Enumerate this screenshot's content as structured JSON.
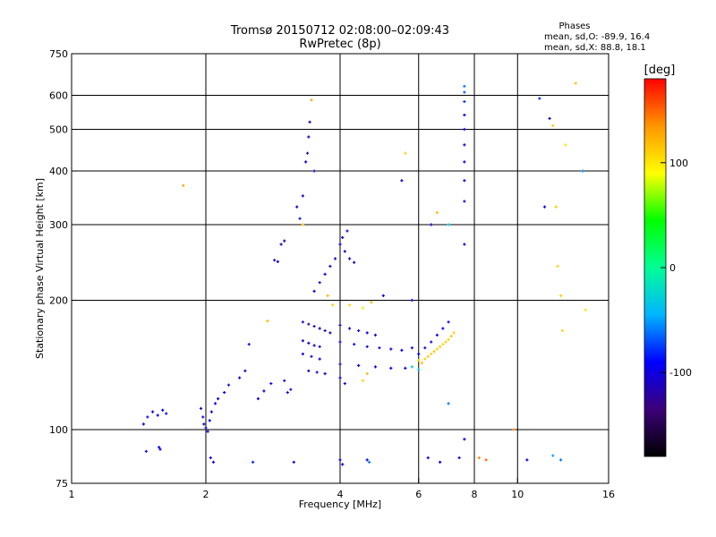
{
  "chart_data": {
    "type": "scatter",
    "title": "Tromsø 20150712 02:08:00–02:09:43",
    "subtitle": "RwPretec (8p)",
    "xlabel": "Frequency [MHz]",
    "ylabel": "Stationary phase Virtual Height [km]",
    "x_scale": "log",
    "y_scale": "log",
    "xlim": [
      1,
      16
    ],
    "ylim": [
      75,
      750
    ],
    "x_ticks": [
      1,
      2,
      4,
      6,
      8,
      10,
      16
    ],
    "y_ticks": [
      75,
      100,
      200,
      300,
      400,
      500,
      600,
      750
    ],
    "grid": true,
    "stats": {
      "heading": "Phases",
      "o_line": "mean, sd,O: -89.9, 16.4",
      "x_line": "mean, sd,X:  88.8, 18.1"
    },
    "colorbar": {
      "label": "[deg]",
      "min": -180,
      "max": 180,
      "ticks": [
        100,
        0,
        -100
      ],
      "colors": [
        "#000000",
        "#3c0078",
        "#0000ff",
        "#00b4ff",
        "#00ff96",
        "#00ff00",
        "#ffff00",
        "#ff9600",
        "#ff0000"
      ]
    },
    "series": [
      {
        "values": [
          {
            "x": 1.45,
            "y": 103,
            "c": -95
          },
          {
            "x": 1.48,
            "y": 107,
            "c": -90
          },
          {
            "x": 1.52,
            "y": 110,
            "c": -100
          },
          {
            "x": 1.56,
            "y": 108,
            "c": -95
          },
          {
            "x": 1.6,
            "y": 111,
            "c": -90
          },
          {
            "x": 1.63,
            "y": 109,
            "c": -100
          },
          {
            "x": 1.47,
            "y": 89,
            "c": -95
          },
          {
            "x": 1.57,
            "y": 91,
            "c": -90
          },
          {
            "x": 1.58,
            "y": 90,
            "c": -95
          },
          {
            "x": 1.78,
            "y": 370,
            "c": 130
          },
          {
            "x": 1.95,
            "y": 112,
            "c": -110
          },
          {
            "x": 1.97,
            "y": 107,
            "c": -100
          },
          {
            "x": 1.98,
            "y": 103,
            "c": -105
          },
          {
            "x": 2.0,
            "y": 101,
            "c": -95
          },
          {
            "x": 2.02,
            "y": 99,
            "c": -100
          },
          {
            "x": 2.04,
            "y": 105,
            "c": -90
          },
          {
            "x": 2.06,
            "y": 110,
            "c": -95
          },
          {
            "x": 2.1,
            "y": 115,
            "c": -90
          },
          {
            "x": 2.13,
            "y": 118,
            "c": -95
          },
          {
            "x": 2.05,
            "y": 86,
            "c": -95
          },
          {
            "x": 2.08,
            "y": 84,
            "c": -100
          },
          {
            "x": 2.2,
            "y": 122,
            "c": -90
          },
          {
            "x": 2.25,
            "y": 127,
            "c": -95
          },
          {
            "x": 2.38,
            "y": 132,
            "c": -100
          },
          {
            "x": 2.45,
            "y": 137,
            "c": -110
          },
          {
            "x": 2.5,
            "y": 158,
            "c": -100
          },
          {
            "x": 2.55,
            "y": 84,
            "c": -80
          },
          {
            "x": 2.62,
            "y": 118,
            "c": -90
          },
          {
            "x": 2.7,
            "y": 123,
            "c": -100
          },
          {
            "x": 2.75,
            "y": 179,
            "c": 120
          },
          {
            "x": 2.8,
            "y": 128,
            "c": -95
          },
          {
            "x": 2.85,
            "y": 248,
            "c": -110
          },
          {
            "x": 2.9,
            "y": 246,
            "c": -100
          },
          {
            "x": 2.95,
            "y": 270,
            "c": -120
          },
          {
            "x": 3.0,
            "y": 275,
            "c": -110
          },
          {
            "x": 3.0,
            "y": 130,
            "c": -105
          },
          {
            "x": 3.05,
            "y": 122,
            "c": -95
          },
          {
            "x": 3.1,
            "y": 124,
            "c": -100
          },
          {
            "x": 3.15,
            "y": 84,
            "c": -110
          },
          {
            "x": 3.2,
            "y": 330,
            "c": -105
          },
          {
            "x": 3.25,
            "y": 310,
            "c": -100
          },
          {
            "x": 3.3,
            "y": 350,
            "c": -110
          },
          {
            "x": 3.3,
            "y": 300,
            "c": 120
          },
          {
            "x": 3.35,
            "y": 420,
            "c": -100
          },
          {
            "x": 3.38,
            "y": 440,
            "c": -110
          },
          {
            "x": 3.4,
            "y": 480,
            "c": -100
          },
          {
            "x": 3.42,
            "y": 520,
            "c": -120
          },
          {
            "x": 3.45,
            "y": 585,
            "c": 130
          },
          {
            "x": 3.5,
            "y": 400,
            "c": -110
          },
          {
            "x": 3.3,
            "y": 178,
            "c": -115
          },
          {
            "x": 3.4,
            "y": 176,
            "c": -120
          },
          {
            "x": 3.5,
            "y": 174,
            "c": -115
          },
          {
            "x": 3.6,
            "y": 172,
            "c": -110
          },
          {
            "x": 3.7,
            "y": 170,
            "c": -120
          },
          {
            "x": 3.8,
            "y": 168,
            "c": -115
          },
          {
            "x": 3.3,
            "y": 161,
            "c": -105
          },
          {
            "x": 3.4,
            "y": 159,
            "c": -100
          },
          {
            "x": 3.5,
            "y": 157,
            "c": -110
          },
          {
            "x": 3.6,
            "y": 156,
            "c": -105
          },
          {
            "x": 3.3,
            "y": 150,
            "c": -100
          },
          {
            "x": 3.45,
            "y": 148,
            "c": -105
          },
          {
            "x": 3.6,
            "y": 146,
            "c": -100
          },
          {
            "x": 3.4,
            "y": 137,
            "c": -110
          },
          {
            "x": 3.55,
            "y": 136,
            "c": -105
          },
          {
            "x": 3.7,
            "y": 135,
            "c": -110
          },
          {
            "x": 3.5,
            "y": 210,
            "c": -110
          },
          {
            "x": 3.6,
            "y": 220,
            "c": -105
          },
          {
            "x": 3.7,
            "y": 230,
            "c": -100
          },
          {
            "x": 3.75,
            "y": 205,
            "c": 120
          },
          {
            "x": 3.8,
            "y": 240,
            "c": -110
          },
          {
            "x": 3.85,
            "y": 195,
            "c": 110
          },
          {
            "x": 3.9,
            "y": 250,
            "c": -105
          },
          {
            "x": 4.0,
            "y": 270,
            "c": -100
          },
          {
            "x": 4.05,
            "y": 280,
            "c": -110
          },
          {
            "x": 4.1,
            "y": 260,
            "c": -105
          },
          {
            "x": 4.15,
            "y": 290,
            "c": -100
          },
          {
            "x": 4.2,
            "y": 250,
            "c": -110
          },
          {
            "x": 4.3,
            "y": 245,
            "c": -120
          },
          {
            "x": 4.0,
            "y": 175,
            "c": -110
          },
          {
            "x": 4.2,
            "y": 172,
            "c": -105
          },
          {
            "x": 4.4,
            "y": 170,
            "c": -100
          },
          {
            "x": 4.6,
            "y": 168,
            "c": -95
          },
          {
            "x": 4.8,
            "y": 166,
            "c": -100
          },
          {
            "x": 4.0,
            "y": 160,
            "c": -100
          },
          {
            "x": 4.3,
            "y": 158,
            "c": -95
          },
          {
            "x": 4.6,
            "y": 156,
            "c": -100
          },
          {
            "x": 4.9,
            "y": 155,
            "c": -95
          },
          {
            "x": 5.2,
            "y": 154,
            "c": -90
          },
          {
            "x": 5.5,
            "y": 153,
            "c": -95
          },
          {
            "x": 5.8,
            "y": 155,
            "c": -100
          },
          {
            "x": 4.0,
            "y": 142,
            "c": -105
          },
          {
            "x": 4.4,
            "y": 141,
            "c": -100
          },
          {
            "x": 4.8,
            "y": 140,
            "c": -95
          },
          {
            "x": 5.2,
            "y": 139,
            "c": -90
          },
          {
            "x": 5.6,
            "y": 139,
            "c": -95
          },
          {
            "x": 4.0,
            "y": 132,
            "c": -100
          },
          {
            "x": 4.1,
            "y": 128,
            "c": -105
          },
          {
            "x": 4.0,
            "y": 85,
            "c": -100
          },
          {
            "x": 4.05,
            "y": 83,
            "c": -95
          },
          {
            "x": 4.6,
            "y": 85,
            "c": -90
          },
          {
            "x": 4.65,
            "y": 84,
            "c": -60
          },
          {
            "x": 4.5,
            "y": 130,
            "c": 110
          },
          {
            "x": 4.6,
            "y": 135,
            "c": 120
          },
          {
            "x": 4.2,
            "y": 195,
            "c": 110
          },
          {
            "x": 4.5,
            "y": 192,
            "c": 100
          },
          {
            "x": 4.7,
            "y": 198,
            "c": 120
          },
          {
            "x": 5.0,
            "y": 205,
            "c": -100
          },
          {
            "x": 5.5,
            "y": 380,
            "c": -110
          },
          {
            "x": 5.6,
            "y": 440,
            "c": 110
          },
          {
            "x": 5.8,
            "y": 200,
            "c": -95
          },
          {
            "x": 6.0,
            "y": 145,
            "c": 110
          },
          {
            "x": 6.1,
            "y": 143,
            "c": 115
          },
          {
            "x": 6.2,
            "y": 146,
            "c": 110
          },
          {
            "x": 6.3,
            "y": 148,
            "c": 115
          },
          {
            "x": 6.4,
            "y": 150,
            "c": 110
          },
          {
            "x": 6.5,
            "y": 152,
            "c": 115
          },
          {
            "x": 6.6,
            "y": 154,
            "c": 110
          },
          {
            "x": 6.7,
            "y": 156,
            "c": 115
          },
          {
            "x": 6.8,
            "y": 158,
            "c": 110
          },
          {
            "x": 6.9,
            "y": 160,
            "c": 115
          },
          {
            "x": 7.0,
            "y": 162,
            "c": 110
          },
          {
            "x": 7.1,
            "y": 165,
            "c": 115
          },
          {
            "x": 7.2,
            "y": 168,
            "c": 110
          },
          {
            "x": 6.0,
            "y": 150,
            "c": -95
          },
          {
            "x": 6.2,
            "y": 155,
            "c": -100
          },
          {
            "x": 6.4,
            "y": 160,
            "c": -95
          },
          {
            "x": 6.6,
            "y": 166,
            "c": -100
          },
          {
            "x": 6.8,
            "y": 172,
            "c": -95
          },
          {
            "x": 7.0,
            "y": 178,
            "c": -100
          },
          {
            "x": 5.8,
            "y": 140,
            "c": -30
          },
          {
            "x": 6.0,
            "y": 138,
            "c": -30
          },
          {
            "x": 6.4,
            "y": 300,
            "c": -110
          },
          {
            "x": 6.6,
            "y": 320,
            "c": 120
          },
          {
            "x": 7.0,
            "y": 300,
            "c": -30
          },
          {
            "x": 7.0,
            "y": 115,
            "c": -60
          },
          {
            "x": 6.3,
            "y": 86,
            "c": -100
          },
          {
            "x": 6.7,
            "y": 84,
            "c": -95
          },
          {
            "x": 7.4,
            "y": 86,
            "c": -100
          },
          {
            "x": 7.6,
            "y": 630,
            "c": -60
          },
          {
            "x": 7.6,
            "y": 610,
            "c": -70
          },
          {
            "x": 7.6,
            "y": 580,
            "c": -80
          },
          {
            "x": 7.6,
            "y": 540,
            "c": -90
          },
          {
            "x": 7.6,
            "y": 500,
            "c": -95
          },
          {
            "x": 7.6,
            "y": 460,
            "c": -100
          },
          {
            "x": 7.6,
            "y": 420,
            "c": -95
          },
          {
            "x": 7.6,
            "y": 380,
            "c": -100
          },
          {
            "x": 7.6,
            "y": 340,
            "c": -95
          },
          {
            "x": 7.6,
            "y": 270,
            "c": -105
          },
          {
            "x": 7.6,
            "y": 95,
            "c": -100
          },
          {
            "x": 8.2,
            "y": 86,
            "c": 140
          },
          {
            "x": 8.5,
            "y": 85,
            "c": 150
          },
          {
            "x": 9.8,
            "y": 100,
            "c": 140
          },
          {
            "x": 10.5,
            "y": 85,
            "c": -100
          },
          {
            "x": 11.2,
            "y": 590,
            "c": -80
          },
          {
            "x": 11.5,
            "y": 330,
            "c": -100
          },
          {
            "x": 11.8,
            "y": 530,
            "c": -110
          },
          {
            "x": 12.0,
            "y": 510,
            "c": 110
          },
          {
            "x": 12.3,
            "y": 240,
            "c": 110
          },
          {
            "x": 12.5,
            "y": 205,
            "c": 110
          },
          {
            "x": 12.2,
            "y": 330,
            "c": 110
          },
          {
            "x": 12.8,
            "y": 460,
            "c": 100
          },
          {
            "x": 12.6,
            "y": 170,
            "c": 110
          },
          {
            "x": 12.0,
            "y": 87,
            "c": -50
          },
          {
            "x": 12.5,
            "y": 85,
            "c": -60
          },
          {
            "x": 13.5,
            "y": 640,
            "c": 120
          },
          {
            "x": 14.0,
            "y": 400,
            "c": -60
          },
          {
            "x": 14.2,
            "y": 190,
            "c": 100
          }
        ]
      }
    ]
  }
}
